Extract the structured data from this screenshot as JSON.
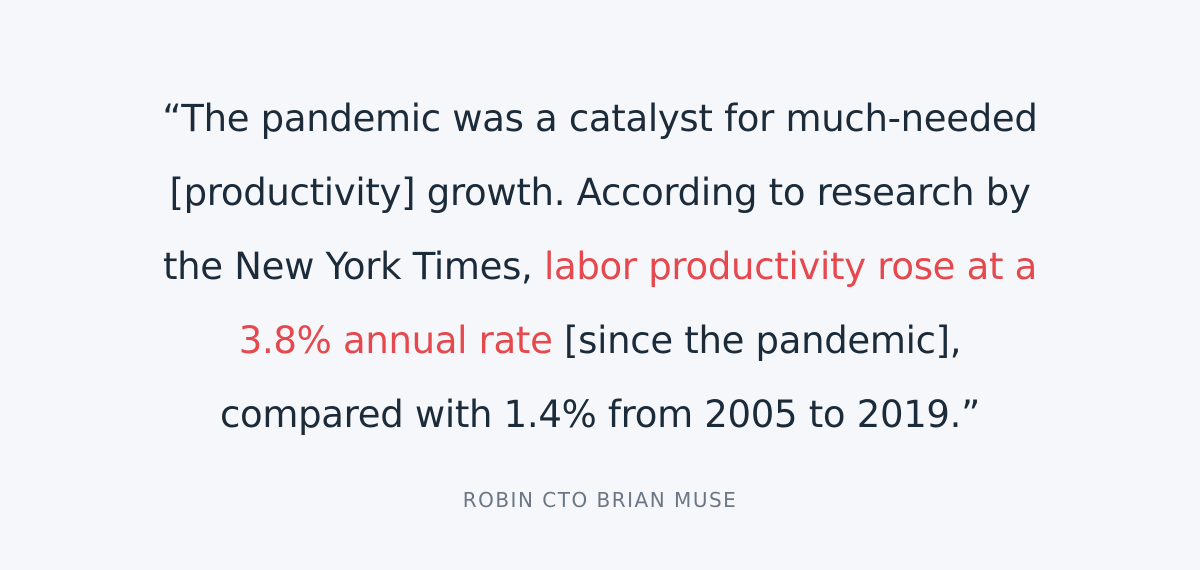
{
  "quote": {
    "lines": [
      [
        {
          "text": "“The pandemic was a catalyst for much-needed"
        }
      ],
      [
        {
          "text": "[productivity] growth. According to research by"
        }
      ],
      [
        {
          "text": "the New York Times, "
        },
        {
          "text": "labor productivity rose at a",
          "color": "#e5484d"
        }
      ],
      [
        {
          "text": "3.8% annual rate",
          "color": "#e5484d"
        },
        {
          "text": " [since the pandemic],"
        }
      ],
      [
        {
          "text": "compared with 1.4% from 2005 to 2019.”"
        }
      ]
    ]
  },
  "attribution": "ROBIN CTO BRIAN MUSE"
}
